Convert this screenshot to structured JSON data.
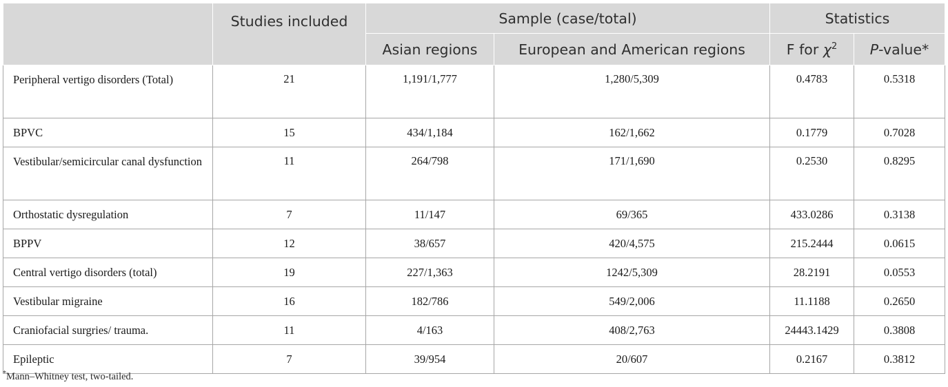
{
  "header": {
    "studies_included": "Studies included",
    "sample_group": "Sample (case/total)",
    "statistics_group": "Statistics",
    "asian": "Asian regions",
    "euro_american": "European and American regions",
    "f_for": "F for",
    "chi": "χ",
    "chi_sup": "2",
    "p_italic": "P",
    "p_rest": "-value*"
  },
  "rows": [
    {
      "label": "Peripheral vertigo disorders (Total)",
      "studies": "21",
      "asian": "1,191/1,777",
      "euro": "1,280/5,309",
      "f": "0.4783",
      "p": "0.5318"
    },
    {
      "label": "BPVC",
      "studies": "15",
      "asian": "434/1,184",
      "euro": "162/1,662",
      "f": "0.1779",
      "p": "0.7028"
    },
    {
      "label": "Vestibular/semicircular canal dysfunction",
      "studies": "11",
      "asian": "264/798",
      "euro": "171/1,690",
      "f": "0.2530",
      "p": "0.8295"
    },
    {
      "label": "Orthostatic dysregulation",
      "studies": "7",
      "asian": "11/147",
      "euro": "69/365",
      "f": "433.0286",
      "p": "0.3138"
    },
    {
      "label": "BPPV",
      "studies": "12",
      "asian": "38/657",
      "euro": "420/4,575",
      "f": "215.2444",
      "p": "0.0615"
    },
    {
      "label": "Central vertigo disorders (total)",
      "studies": "19",
      "asian": "227/1,363",
      "euro": "1242/5,309",
      "f": "28.2191",
      "p": "0.0553"
    },
    {
      "label": "Vestibular migraine",
      "studies": "16",
      "asian": "182/786",
      "euro": "549/2,006",
      "f": "11.1188",
      "p": "0.2650"
    },
    {
      "label": "Craniofacial surgries/ trauma.",
      "studies": "11",
      "asian": "4/163",
      "euro": "408/2,763",
      "f": "24443.1429",
      "p": "0.3808"
    },
    {
      "label": "Epileptic",
      "studies": "7",
      "asian": "39/954",
      "euro": "20/607",
      "f": "0.2167",
      "p": "0.3812"
    }
  ],
  "footnote": {
    "marker": "*",
    "text": "Mann–Whitney test, two-tailed."
  }
}
